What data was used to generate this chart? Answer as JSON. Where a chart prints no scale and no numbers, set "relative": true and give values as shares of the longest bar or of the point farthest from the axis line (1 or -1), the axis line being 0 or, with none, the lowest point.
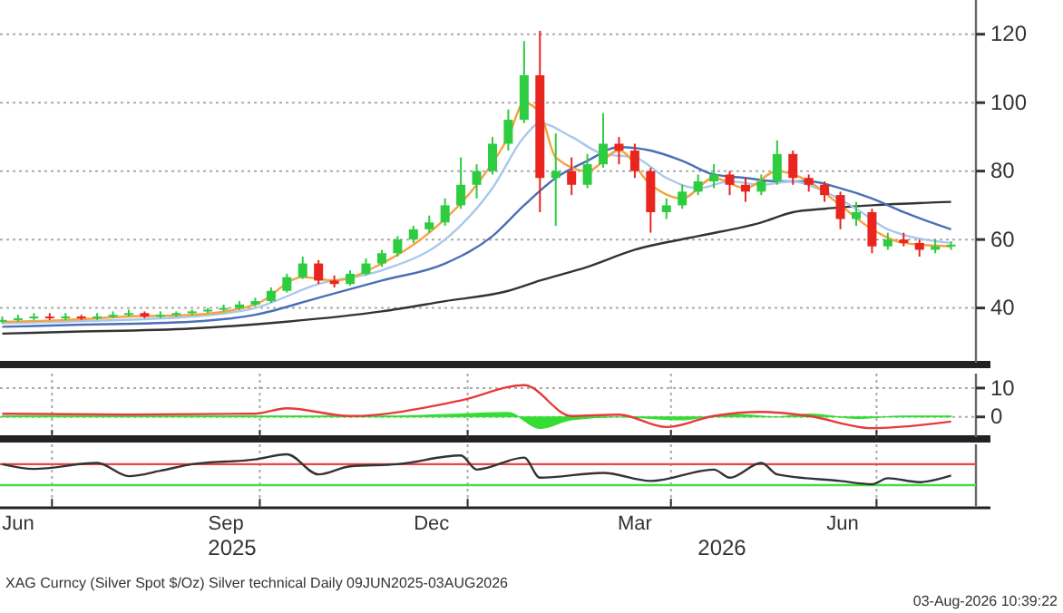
{
  "chart_data": [
    {
      "type": "candlestick",
      "xlim": [
        "2025-06-08",
        "2026-08-14"
      ],
      "ylim": [
        24,
        130
      ],
      "yticks": [
        40,
        60,
        80,
        100,
        120
      ],
      "grid": "y",
      "tick_labels": "y",
      "x": [
        "2025-06-09",
        "2025-06-16",
        "2025-06-23",
        "2025-06-30",
        "2025-07-07",
        "2025-07-14",
        "2025-07-21",
        "2025-07-28",
        "2025-08-04",
        "2025-08-11",
        "2025-08-18",
        "2025-08-25",
        "2025-09-01",
        "2025-09-08",
        "2025-09-15",
        "2025-09-22",
        "2025-09-29",
        "2025-10-06",
        "2025-10-13",
        "2025-10-20",
        "2025-10-27",
        "2025-11-03",
        "2025-11-10",
        "2025-11-17",
        "2025-11-24",
        "2025-12-01",
        "2025-12-08",
        "2025-12-15",
        "2025-12-22",
        "2025-12-29",
        "2026-01-05",
        "2026-01-12",
        "2026-01-19",
        "2026-01-26",
        "2026-02-02",
        "2026-02-09",
        "2026-02-16",
        "2026-02-23",
        "2026-03-02",
        "2026-03-09",
        "2026-03-16",
        "2026-03-23",
        "2026-03-30",
        "2026-04-06",
        "2026-04-13",
        "2026-04-20",
        "2026-04-27",
        "2026-05-04",
        "2026-05-11",
        "2026-05-18",
        "2026-05-25",
        "2026-06-01",
        "2026-06-08",
        "2026-06-15",
        "2026-06-22",
        "2026-06-29",
        "2026-07-06",
        "2026-07-13",
        "2026-07-20",
        "2026-07-27",
        "2026-08-03"
      ],
      "ohlc": [
        [
          36,
          37.5,
          35.5,
          36.5
        ],
        [
          36.5,
          38,
          36,
          37
        ],
        [
          37,
          38.5,
          36.5,
          37.5
        ],
        [
          37.5,
          38.5,
          36.5,
          37
        ],
        [
          37,
          38.5,
          36.5,
          37.5
        ],
        [
          37.5,
          38,
          36.5,
          37
        ],
        [
          37,
          38.5,
          36.5,
          37.5
        ],
        [
          37.5,
          39,
          37,
          38
        ],
        [
          38,
          39.5,
          37.5,
          38.5
        ],
        [
          38.5,
          39,
          37,
          37.5
        ],
        [
          37.5,
          39,
          37,
          38
        ],
        [
          38,
          39,
          37.5,
          38.5
        ],
        [
          38.5,
          39.5,
          38,
          39
        ],
        [
          39,
          40,
          38.5,
          39.5
        ],
        [
          39.5,
          41,
          39,
          40
        ],
        [
          40,
          42,
          39.5,
          41
        ],
        [
          41,
          43,
          40.5,
          42
        ],
        [
          42,
          46,
          41.5,
          45
        ],
        [
          45,
          50,
          44.5,
          49
        ],
        [
          49,
          55,
          48.5,
          53
        ],
        [
          53,
          54,
          47,
          48
        ],
        [
          48,
          49.5,
          46,
          47
        ],
        [
          47,
          51,
          46.5,
          50
        ],
        [
          50,
          54.5,
          49.5,
          53
        ],
        [
          53,
          57,
          52,
          56
        ],
        [
          56,
          61,
          55,
          60
        ],
        [
          60,
          64,
          59,
          63
        ],
        [
          63,
          67,
          62,
          65
        ],
        [
          65,
          72,
          64,
          70
        ],
        [
          70,
          84,
          69,
          76
        ],
        [
          76,
          82,
          72,
          80
        ],
        [
          80,
          90,
          79,
          88
        ],
        [
          88,
          98,
          86,
          95
        ],
        [
          95,
          118,
          94,
          108
        ],
        [
          108,
          121,
          68,
          78
        ],
        [
          78,
          91,
          64,
          80
        ],
        [
          80,
          84,
          73,
          76
        ],
        [
          76,
          85,
          75,
          82
        ],
        [
          82,
          97,
          81,
          88
        ],
        [
          88,
          90,
          82,
          86
        ],
        [
          86,
          88,
          78,
          80
        ],
        [
          80,
          81,
          62,
          68
        ],
        [
          68,
          72,
          66,
          70
        ],
        [
          70,
          76,
          69,
          74
        ],
        [
          74,
          79,
          73,
          77
        ],
        [
          77,
          82,
          75,
          79
        ],
        [
          79,
          80,
          73,
          76
        ],
        [
          76,
          78,
          71,
          74
        ],
        [
          74,
          79,
          73,
          77
        ],
        [
          77,
          89,
          76,
          85
        ],
        [
          85,
          86,
          76,
          78
        ],
        [
          78,
          79,
          74,
          76
        ],
        [
          76,
          77,
          71,
          73
        ],
        [
          73,
          74,
          63,
          66
        ],
        [
          66,
          71,
          64,
          68
        ],
        [
          68,
          69,
          56,
          58
        ],
        [
          58,
          62,
          57,
          60
        ],
        [
          60,
          62,
          58,
          59
        ],
        [
          59,
          60,
          55,
          57
        ],
        [
          57,
          60,
          56,
          58
        ],
        [
          58,
          59.5,
          57,
          58.5
        ]
      ],
      "colors": [
        "#2ecc40",
        "#2ecc40",
        "#2ecc40",
        "#e8251f",
        "#2ecc40",
        "#e8251f",
        "#2ecc40",
        "#2ecc40",
        "#2ecc40",
        "#e8251f",
        "#2ecc40",
        "#2ecc40",
        "#2ecc40",
        "#2ecc40",
        "#2ecc40",
        "#2ecc40",
        "#2ecc40",
        "#2ecc40",
        "#2ecc40",
        "#2ecc40",
        "#e8251f",
        "#e8251f",
        "#2ecc40",
        "#2ecc40",
        "#2ecc40",
        "#2ecc40",
        "#2ecc40",
        "#2ecc40",
        "#2ecc40",
        "#2ecc40",
        "#2ecc40",
        "#2ecc40",
        "#2ecc40",
        "#2ecc40",
        "#e8251f",
        "#2ecc40",
        "#e8251f",
        "#2ecc40",
        "#2ecc40",
        "#e8251f",
        "#e8251f",
        "#e8251f",
        "#2ecc40",
        "#2ecc40",
        "#2ecc40",
        "#2ecc40",
        "#e8251f",
        "#e8251f",
        "#2ecc40",
        "#2ecc40",
        "#e8251f",
        "#e8251f",
        "#e8251f",
        "#e8251f",
        "#2ecc40",
        "#e8251f",
        "#2ecc40",
        "#e8251f",
        "#e8251f",
        "#2ecc40",
        "#2ecc40"
      ],
      "series": [
        {
          "type": "line",
          "color": "#333333",
          "x": [
            "2025-06-09",
            "2025-07-07",
            "2025-09-01",
            "2025-10-13",
            "2025-11-24",
            "2025-12-22",
            "2026-01-19",
            "2026-02-02",
            "2026-02-23",
            "2026-03-16",
            "2026-04-13",
            "2026-05-11",
            "2026-05-25",
            "2026-06-08",
            "2026-06-29",
            "2026-08-03"
          ],
          "values": [
            32.5,
            33,
            34,
            36,
            39,
            42,
            45,
            48,
            52,
            57,
            61,
            65,
            68,
            69,
            70,
            71
          ]
        },
        {
          "type": "line",
          "color": "#4a6fb5",
          "x": [
            "2025-06-09",
            "2025-07-07",
            "2025-09-01",
            "2025-09-29",
            "2025-10-27",
            "2025-11-24",
            "2025-12-22",
            "2026-01-12",
            "2026-01-26",
            "2026-02-09",
            "2026-02-23",
            "2026-03-09",
            "2026-03-23",
            "2026-04-06",
            "2026-04-20",
            "2026-05-04",
            "2026-05-18",
            "2026-06-01",
            "2026-06-15",
            "2026-06-29",
            "2026-07-13",
            "2026-08-03"
          ],
          "values": [
            34.5,
            35,
            36,
            38,
            43,
            48,
            53,
            61,
            70,
            78,
            83,
            87,
            86,
            83,
            79,
            78,
            77,
            77,
            75,
            72,
            68,
            63
          ]
        },
        {
          "type": "line",
          "color": "#a8c8ec",
          "x": [
            "2025-06-09",
            "2025-07-07",
            "2025-09-01",
            "2025-09-29",
            "2025-10-27",
            "2025-11-24",
            "2025-12-22",
            "2026-01-12",
            "2026-01-26",
            "2026-02-02",
            "2026-02-16",
            "2026-03-02",
            "2026-03-16",
            "2026-03-30",
            "2026-04-13",
            "2026-04-27",
            "2026-05-11",
            "2026-05-25",
            "2026-06-08",
            "2026-06-22",
            "2026-07-06",
            "2026-08-03"
          ],
          "values": [
            35.5,
            36,
            37.5,
            40,
            47,
            51,
            60,
            75,
            90,
            94,
            90,
            85,
            84,
            78,
            75,
            77,
            76,
            77,
            74,
            69,
            63,
            59
          ]
        },
        {
          "type": "line",
          "color": "#f5a340",
          "x": [
            "2025-06-09",
            "2025-07-07",
            "2025-08-04",
            "2025-09-01",
            "2025-09-29",
            "2025-10-20",
            "2025-11-03",
            "2025-11-24",
            "2025-12-15",
            "2026-01-05",
            "2026-01-19",
            "2026-01-26",
            "2026-02-02",
            "2026-02-09",
            "2026-02-23",
            "2026-03-09",
            "2026-03-23",
            "2026-04-06",
            "2026-04-20",
            "2026-05-04",
            "2026-05-18",
            "2026-06-01",
            "2026-06-15",
            "2026-06-29",
            "2026-07-13",
            "2026-08-03"
          ],
          "values": [
            36,
            36.5,
            37.5,
            38,
            41,
            49,
            48,
            53,
            62,
            76,
            90,
            100,
            97,
            84,
            80,
            86,
            76,
            72,
            78,
            75,
            80,
            77,
            70,
            63,
            59,
            58
          ]
        }
      ]
    },
    {
      "type": "line",
      "xlim": [
        "2025-06-08",
        "2026-08-14"
      ],
      "ylim": [
        -7,
        15
      ],
      "yticks": [
        0,
        10
      ],
      "grid": true,
      "tick_labels": "y",
      "xticks": [
        {
          "value": "2025-07-01",
          "label": null
        },
        {
          "value": "2025-10-01",
          "label": null
        },
        {
          "value": "2026-01-01",
          "label": null
        },
        {
          "value": "2026-04-01",
          "label": null
        },
        {
          "value": "2026-07-01",
          "label": null
        }
      ],
      "series": [
        {
          "type": "area",
          "color": "#33dd33",
          "x": [
            "2025-06-09",
            "2025-12-01",
            "2025-12-29",
            "2026-01-19",
            "2026-02-02",
            "2026-02-16",
            "2026-03-09",
            "2026-04-06",
            "2026-04-27",
            "2026-05-18",
            "2026-06-01",
            "2026-06-22",
            "2026-07-13",
            "2026-08-03"
          ],
          "values": [
            0.3,
            0.3,
            1,
            1.5,
            -4,
            -1,
            0,
            -1,
            1,
            0,
            1,
            -0.5,
            0.3,
            0.3
          ]
        },
        {
          "type": "line",
          "color": "#e83a3a",
          "x": [
            "2025-06-09",
            "2025-08-04",
            "2025-09-29",
            "2025-10-13",
            "2025-11-10",
            "2025-12-29",
            "2026-01-26",
            "2026-02-16",
            "2026-03-09",
            "2026-03-30",
            "2026-04-20",
            "2026-05-11",
            "2026-06-01",
            "2026-06-29",
            "2026-08-03"
          ],
          "values": [
            1.1,
            0.8,
            1.1,
            3,
            0.3,
            5.7,
            11,
            0.3,
            0.8,
            -3.5,
            0.3,
            1.7,
            0.3,
            -3.9,
            -1.6
          ]
        }
      ]
    },
    {
      "type": "line",
      "relative": true,
      "xlim": [
        "2025-06-08",
        "2026-08-14"
      ],
      "grid": "x",
      "tick_labels": "x",
      "title": "XAG Curncy (Silver Spot $/Oz) Silver technical Daily 09JUN2025-03AUG2026",
      "annotations": [
        "2025",
        "2026",
        "03-Aug-2026 10:39:22"
      ],
      "xticks": [
        {
          "value": "2025-07-01",
          "label": null
        },
        {
          "value": "2025-10-01",
          "label": null
        },
        {
          "value": "2026-01-01",
          "label": null
        },
        {
          "value": "2026-04-01",
          "label": null
        },
        {
          "value": "2026-07-01",
          "label": null
        },
        {
          "value": "2025-06-16",
          "label": "Jun"
        },
        {
          "value": "2025-09-16",
          "label": "Sep"
        },
        {
          "value": "2025-12-16",
          "label": "Dec"
        },
        {
          "value": "2026-03-16",
          "label": "Mar"
        },
        {
          "value": "2026-06-16",
          "label": "Jun"
        }
      ],
      "ref_lines": [
        {
          "axis": "y",
          "value": 0.67,
          "color": "#ee4444"
        },
        {
          "axis": "y",
          "value": -0.03,
          "color": "#44dd44"
        }
      ],
      "series": [
        {
          "type": "line",
          "color": "#333333",
          "x": [
            "2025-06-09",
            "2025-06-23",
            "2025-07-21",
            "2025-08-04",
            "2025-08-18",
            "2025-09-01",
            "2025-09-29",
            "2025-10-13",
            "2025-10-27",
            "2025-11-10",
            "2025-12-01",
            "2025-12-29",
            "2026-01-05",
            "2026-01-26",
            "2026-02-02",
            "2026-03-02",
            "2026-03-23",
            "2026-04-20",
            "2026-04-27",
            "2026-05-11",
            "2026-05-18",
            "2026-06-15",
            "2026-06-29",
            "2026-07-06",
            "2026-07-20",
            "2026-08-03"
          ],
          "values": [
            0.67,
            0.51,
            0.71,
            0.27,
            0.45,
            0.67,
            0.83,
            1,
            0.33,
            0.6,
            0.67,
            0.96,
            0.49,
            0.89,
            0.22,
            0.38,
            0.11,
            0.49,
            0.22,
            0.71,
            0.33,
            0.11,
            0,
            0.2,
            0.07,
            0.29
          ]
        }
      ]
    }
  ]
}
